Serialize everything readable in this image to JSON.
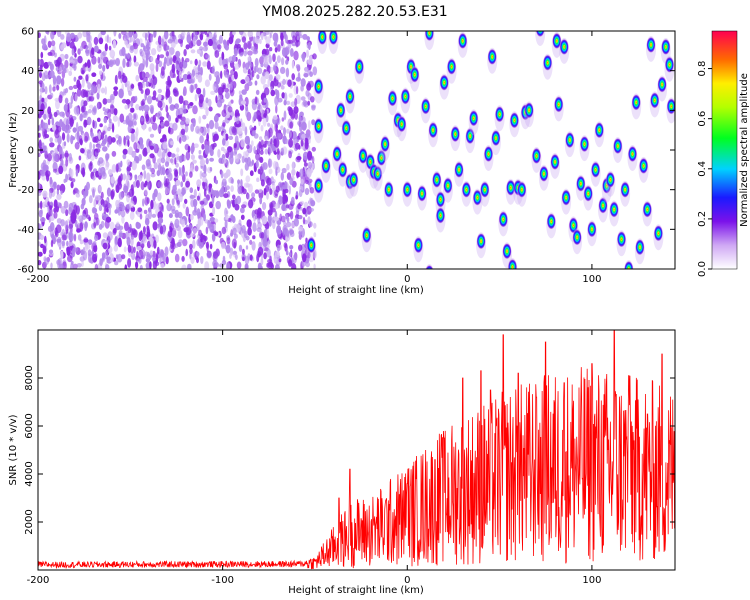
{
  "title": "YM08.2025.282.20.53.E31",
  "chart_data": [
    {
      "type": "heatmap",
      "name": "spectrogram",
      "xlabel": "Height of straight line (km)",
      "ylabel": "Frequency (Hz)",
      "xlim": [
        -200,
        145
      ],
      "ylim": [
        -60,
        60
      ],
      "xticks": [
        -200,
        -100,
        0,
        100
      ],
      "yticks": [
        -60,
        -40,
        -20,
        0,
        20,
        40,
        60
      ],
      "noise_region_end_km": -50,
      "colorbar": {
        "label": "Normalized spectral amplitude",
        "range": [
          0,
          0.95
        ],
        "ticks": [
          0.0,
          0.2,
          0.4,
          0.6,
          0.8
        ]
      },
      "blobs": [
        [
          -52,
          -48
        ],
        [
          -48,
          -18
        ],
        [
          -48,
          12
        ],
        [
          -48,
          32
        ],
        [
          -46,
          57
        ],
        [
          -44,
          -8
        ],
        [
          -40,
          57
        ],
        [
          -38,
          -2
        ],
        [
          -36,
          20
        ],
        [
          -35,
          -10
        ],
        [
          -33,
          11
        ],
        [
          -31,
          27
        ],
        [
          -31,
          -16
        ],
        [
          -29,
          -15
        ],
        [
          -26,
          42
        ],
        [
          -24,
          -3
        ],
        [
          -22,
          -43
        ],
        [
          -20,
          -6
        ],
        [
          -18,
          -11
        ],
        [
          -16,
          -12
        ],
        [
          -14,
          -4
        ],
        [
          -12,
          3
        ],
        [
          -10,
          -20
        ],
        [
          -8,
          26
        ],
        [
          -5,
          15
        ],
        [
          -3,
          13
        ],
        [
          -1,
          27
        ],
        [
          0,
          -20
        ],
        [
          2,
          42
        ],
        [
          4,
          38
        ],
        [
          6,
          -48
        ],
        [
          8,
          -22
        ],
        [
          10,
          22
        ],
        [
          12,
          -62
        ],
        [
          12,
          59
        ],
        [
          14,
          10
        ],
        [
          16,
          -15
        ],
        [
          18,
          -25
        ],
        [
          18,
          -33
        ],
        [
          20,
          34
        ],
        [
          22,
          -18
        ],
        [
          24,
          42
        ],
        [
          26,
          8
        ],
        [
          28,
          -10
        ],
        [
          30,
          55
        ],
        [
          32,
          -20
        ],
        [
          34,
          7
        ],
        [
          36,
          16
        ],
        [
          38,
          -24
        ],
        [
          40,
          -46
        ],
        [
          42,
          -20
        ],
        [
          44,
          -2
        ],
        [
          46,
          47
        ],
        [
          48,
          6
        ],
        [
          50,
          18
        ],
        [
          52,
          -35
        ],
        [
          54,
          -51
        ],
        [
          56,
          -19
        ],
        [
          57,
          -59
        ],
        [
          58,
          15
        ],
        [
          60,
          -19
        ],
        [
          62,
          -20
        ],
        [
          64,
          19
        ],
        [
          66,
          20
        ],
        [
          70,
          -3
        ],
        [
          72,
          61
        ],
        [
          74,
          -12
        ],
        [
          76,
          44
        ],
        [
          78,
          -36
        ],
        [
          80,
          -6
        ],
        [
          81,
          55
        ],
        [
          82,
          23
        ],
        [
          85,
          52
        ],
        [
          86,
          -24
        ],
        [
          88,
          5
        ],
        [
          90,
          -38
        ],
        [
          92,
          -44
        ],
        [
          94,
          -17
        ],
        [
          96,
          3
        ],
        [
          98,
          -22
        ],
        [
          100,
          -40
        ],
        [
          102,
          -10
        ],
        [
          104,
          10
        ],
        [
          106,
          -28
        ],
        [
          108,
          -18
        ],
        [
          110,
          -15
        ],
        [
          112,
          -30
        ],
        [
          114,
          2
        ],
        [
          116,
          -45
        ],
        [
          118,
          -20
        ],
        [
          120,
          -60
        ],
        [
          122,
          -2
        ],
        [
          124,
          24
        ],
        [
          126,
          -49
        ],
        [
          128,
          -8
        ],
        [
          130,
          -30
        ],
        [
          132,
          53
        ],
        [
          134,
          25
        ],
        [
          136,
          -42
        ],
        [
          138,
          33
        ],
        [
          140,
          52
        ],
        [
          142,
          43
        ],
        [
          143,
          22
        ]
      ]
    },
    {
      "type": "line",
      "name": "snr",
      "xlabel": "Height of straight line (km)",
      "ylabel": "SNR (10 * v/v)",
      "xlim": [
        -200,
        145
      ],
      "ylim": [
        0,
        10000
      ],
      "xticks": [
        -200,
        -100,
        0,
        100
      ],
      "yticks": [
        2000,
        4000,
        6000,
        8000
      ],
      "color": "#ff0000",
      "anchors": {
        "x": [
          -200,
          -60,
          -50,
          -40,
          -30,
          -20,
          0,
          20,
          40,
          60,
          80,
          100,
          120,
          145
        ],
        "y": [
          220,
          250,
          300,
          950,
          1550,
          1600,
          2300,
          3100,
          3600,
          4000,
          4300,
          4400,
          4200,
          4000
        ]
      },
      "peaks": [
        [
          -37,
          3000
        ],
        [
          -31,
          4200
        ],
        [
          0,
          3600
        ],
        [
          15,
          4600
        ],
        [
          20,
          5500
        ],
        [
          30,
          8000
        ],
        [
          40,
          8300
        ],
        [
          45,
          7500
        ],
        [
          52,
          9800
        ],
        [
          60,
          8200
        ],
        [
          70,
          7200
        ],
        [
          75,
          9500
        ],
        [
          85,
          7800
        ],
        [
          100,
          8600
        ],
        [
          112,
          10000
        ],
        [
          120,
          8100
        ],
        [
          130,
          6500
        ],
        [
          138,
          9000
        ]
      ]
    }
  ]
}
